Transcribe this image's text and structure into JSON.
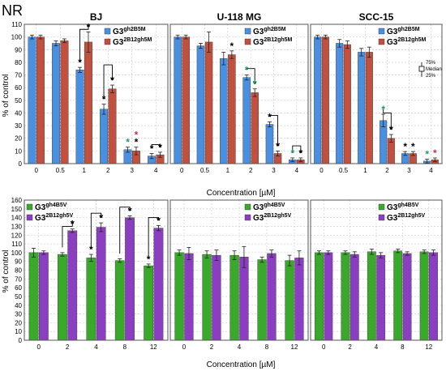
{
  "figure_label": "NR",
  "colors": {
    "blue": "#4a8fe0",
    "red": "#c05040",
    "green": "#3aa82a",
    "purple": "#8a3fc0",
    "frame": "#555555",
    "grid": "#c8c8c8",
    "star_black": "#000000",
    "star_green": "#1a9a6a",
    "star_red": "#c03060"
  },
  "shared": {
    "ylabel": "% of control",
    "xlabel_top": "Concentration [µM]",
    "xlabel_bottom": "Concentration [µM]",
    "median_legend": {
      "upper": "75%",
      "middle": "Median",
      "lower": "25%"
    }
  },
  "chart_data": [
    {
      "type": "bar",
      "title": "BJ",
      "row": "top",
      "categories": [
        "0",
        "0.5",
        "1",
        "2",
        "3",
        "4"
      ],
      "ylim": [
        0,
        110
      ],
      "yticks": [
        0,
        10,
        20,
        30,
        40,
        50,
        60,
        70,
        80,
        90,
        100,
        110
      ],
      "ylabel": "% of control",
      "grid": true,
      "legend_position": "top-right",
      "series": [
        {
          "name_base": "G3",
          "name_sup": "gh2B5M",
          "color_key": "blue",
          "values": [
            100,
            95,
            74,
            43,
            11,
            6
          ],
          "errors": [
            1.5,
            2,
            2,
            4,
            2,
            2
          ]
        },
        {
          "name_base": "G3",
          "name_sup": "2B12gh5M",
          "color_key": "red",
          "values": [
            100,
            97,
            96,
            59,
            10,
            7
          ],
          "errors": [
            1.5,
            1.5,
            8,
            3,
            3,
            2
          ]
        }
      ],
      "stars": [
        {
          "cat": 2,
          "series": 0,
          "color_key": "star_black"
        },
        {
          "cat": 2,
          "series": 1,
          "color_key": "star_black"
        },
        {
          "cat": 3,
          "series": 0,
          "color_key": "star_black"
        },
        {
          "cat": 3,
          "series": 1,
          "color_key": "star_black"
        },
        {
          "cat": 4,
          "series": 0,
          "color_key": "star_green"
        },
        {
          "cat": 4,
          "series": 1,
          "color_key": "star_black"
        },
        {
          "cat": 4,
          "series": 1,
          "color_key": "star_red",
          "offset": 1
        },
        {
          "cat": 5,
          "series": 0,
          "color_key": "star_black"
        },
        {
          "cat": 5,
          "series": 1,
          "color_key": "star_black"
        }
      ],
      "brackets": [
        {
          "cat": 2,
          "top": 106
        },
        {
          "cat": 3,
          "top": 78
        },
        {
          "cat": 5,
          "top": 15
        }
      ]
    },
    {
      "type": "bar",
      "title": "U-118 MG",
      "row": "top",
      "categories": [
        "0",
        "0.5",
        "1",
        "2",
        "3",
        "4"
      ],
      "ylim": [
        0,
        110
      ],
      "grid": true,
      "legend_position": "top-right",
      "series": [
        {
          "name_base": "G3",
          "name_sup": "gh2B5M",
          "color_key": "blue",
          "values": [
            100,
            93,
            83,
            68,
            31,
            3
          ],
          "errors": [
            1.5,
            2,
            5,
            2,
            2,
            1.5
          ]
        },
        {
          "name_base": "G3",
          "name_sup": "2B12gh5M",
          "color_key": "red",
          "values": [
            100,
            96,
            86,
            56,
            8,
            3
          ],
          "errors": [
            1.5,
            8,
            3,
            3,
            2,
            1.5
          ]
        }
      ],
      "stars": [
        {
          "cat": 2,
          "series": 1,
          "color_key": "star_black"
        },
        {
          "cat": 3,
          "series": 0,
          "color_key": "star_green"
        },
        {
          "cat": 3,
          "series": 1,
          "color_key": "star_green"
        },
        {
          "cat": 4,
          "series": 0,
          "color_key": "star_black"
        },
        {
          "cat": 4,
          "series": 1,
          "color_key": "star_black"
        },
        {
          "cat": 5,
          "series": 0,
          "color_key": "star_green"
        },
        {
          "cat": 5,
          "series": 1,
          "color_key": "star_black"
        }
      ],
      "brackets": [
        {
          "cat": 3,
          "top": 75
        },
        {
          "cat": 4,
          "top": 38
        },
        {
          "cat": 5,
          "top": 14
        }
      ]
    },
    {
      "type": "bar",
      "title": "SCC-15",
      "row": "top",
      "categories": [
        "0",
        "0.5",
        "1",
        "2",
        "3",
        "4"
      ],
      "ylim": [
        0,
        110
      ],
      "grid": true,
      "legend_position": "top-right",
      "series": [
        {
          "name_base": "G3",
          "name_sup": "gh2B5M",
          "color_key": "blue",
          "values": [
            100,
            95,
            88,
            34,
            8,
            2
          ],
          "errors": [
            1.5,
            3,
            3,
            5,
            1.5,
            1.5
          ]
        },
        {
          "name_base": "G3",
          "name_sup": "2B12gh5M",
          "color_key": "red",
          "values": [
            100,
            94,
            88,
            20,
            8,
            3
          ],
          "errors": [
            1.5,
            3,
            4,
            3,
            1.5,
            1.5
          ]
        }
      ],
      "stars": [
        {
          "cat": 3,
          "series": 0,
          "color_key": "star_green"
        },
        {
          "cat": 3,
          "series": 1,
          "color_key": "star_black"
        },
        {
          "cat": 4,
          "series": 0,
          "color_key": "star_black"
        },
        {
          "cat": 4,
          "series": 1,
          "color_key": "star_black"
        },
        {
          "cat": 5,
          "series": 0,
          "color_key": "star_green"
        },
        {
          "cat": 5,
          "series": 1,
          "color_key": "star_red"
        }
      ],
      "brackets": [
        {
          "cat": 3,
          "top": 40
        }
      ]
    },
    {
      "type": "bar",
      "title": "",
      "row": "bottom",
      "categories": [
        "0",
        "2",
        "4",
        "8",
        "12"
      ],
      "ylim": [
        0,
        160
      ],
      "yticks": [
        0,
        10,
        20,
        30,
        40,
        50,
        60,
        70,
        80,
        90,
        100,
        110,
        120,
        130,
        140,
        150,
        160
      ],
      "ylabel": "% of control",
      "grid": true,
      "legend_position": "top-left",
      "series": [
        {
          "name_base": "G3",
          "name_sup": "gh4B5V",
          "color_key": "green",
          "values": [
            100,
            98,
            94,
            91,
            85
          ],
          "errors": [
            5,
            2,
            4,
            2,
            2
          ]
        },
        {
          "name_base": "G3",
          "name_sup": "2B12gh5V",
          "color_key": "purple",
          "values": [
            100,
            125,
            129,
            140,
            128
          ],
          "errors": [
            2,
            2,
            5,
            2,
            3
          ]
        }
      ],
      "stars": [
        {
          "cat": 1,
          "series": 1,
          "color_key": "star_black"
        },
        {
          "cat": 2,
          "series": 0,
          "color_key": "star_black"
        },
        {
          "cat": 2,
          "series": 1,
          "color_key": "star_black"
        },
        {
          "cat": 3,
          "series": 1,
          "color_key": "star_black"
        },
        {
          "cat": 4,
          "series": 0,
          "color_key": "star_black"
        },
        {
          "cat": 4,
          "series": 1,
          "color_key": "star_black"
        }
      ],
      "brackets": [
        {
          "cat": 1,
          "top": 130
        },
        {
          "cat": 2,
          "top": 145
        },
        {
          "cat": 3,
          "top": 152
        },
        {
          "cat": 4,
          "top": 140
        }
      ]
    },
    {
      "type": "bar",
      "title": "",
      "row": "bottom",
      "categories": [
        "0",
        "2",
        "4",
        "8",
        "12"
      ],
      "ylim": [
        0,
        160
      ],
      "grid": true,
      "legend_position": "top-right",
      "series": [
        {
          "name_base": "G3",
          "name_sup": "gh4B5V",
          "color_key": "green",
          "values": [
            100,
            98,
            97,
            92,
            91
          ],
          "errors": [
            3,
            4,
            5,
            3,
            6
          ]
        },
        {
          "name_base": "G3",
          "name_sup": "2B12gh5V",
          "color_key": "purple",
          "values": [
            99,
            97,
            95,
            99,
            94
          ],
          "errors": [
            7,
            6,
            12,
            4,
            8
          ]
        }
      ],
      "stars": [],
      "brackets": []
    },
    {
      "type": "bar",
      "title": "",
      "row": "bottom",
      "categories": [
        "0",
        "2",
        "4",
        "8",
        "12"
      ],
      "ylim": [
        0,
        160
      ],
      "grid": true,
      "legend_position": "top-right",
      "series": [
        {
          "name_base": "G3",
          "name_sup": "gh4B5V",
          "color_key": "green",
          "values": [
            100,
            100,
            101,
            102,
            101
          ],
          "errors": [
            2,
            2,
            3,
            2,
            2
          ]
        },
        {
          "name_base": "G3",
          "name_sup": "2B12gh5V",
          "color_key": "purple",
          "values": [
            100,
            98,
            97,
            99,
            100
          ],
          "errors": [
            2,
            3,
            3,
            2,
            3
          ]
        }
      ],
      "stars": [],
      "brackets": []
    }
  ]
}
